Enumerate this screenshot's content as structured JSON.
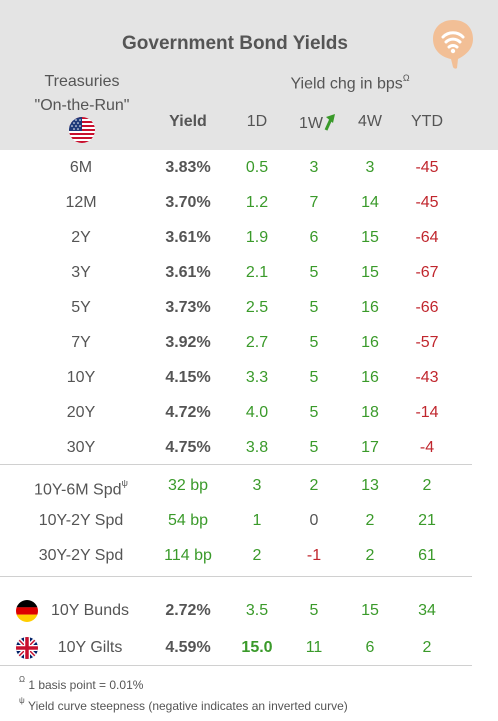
{
  "title": "Government Bond Yields",
  "header": {
    "treasuries_line1": "Treasuries",
    "treasuries_line2": "\"On-the-Run\"",
    "chg_title": "Yield chg in bps",
    "chg_sup": "Ω",
    "col_yield": "Yield",
    "col_1d": "1D",
    "col_1w": "1W",
    "col_4w": "4W",
    "col_ytd": "YTD"
  },
  "treasuries": [
    {
      "label": "6M",
      "yield": "3.83%",
      "d1": "0.5",
      "w1": "3",
      "w4": "3",
      "ytd": "-45"
    },
    {
      "label": "12M",
      "yield": "3.70%",
      "d1": "1.2",
      "w1": "7",
      "w4": "14",
      "ytd": "-45"
    },
    {
      "label": "2Y",
      "yield": "3.61%",
      "d1": "1.9",
      "w1": "6",
      "w4": "15",
      "ytd": "-64"
    },
    {
      "label": "3Y",
      "yield": "3.61%",
      "d1": "2.1",
      "w1": "5",
      "w4": "15",
      "ytd": "-67"
    },
    {
      "label": "5Y",
      "yield": "3.73%",
      "d1": "2.5",
      "w1": "5",
      "w4": "16",
      "ytd": "-66"
    },
    {
      "label": "7Y",
      "yield": "3.92%",
      "d1": "2.7",
      "w1": "5",
      "w4": "16",
      "ytd": "-57"
    },
    {
      "label": "10Y",
      "yield": "4.15%",
      "d1": "3.3",
      "w1": "5",
      "w4": "16",
      "ytd": "-43"
    },
    {
      "label": "20Y",
      "yield": "4.72%",
      "d1": "4.0",
      "w1": "5",
      "w4": "18",
      "ytd": "-14"
    },
    {
      "label": "30Y",
      "yield": "4.75%",
      "d1": "3.8",
      "w1": "5",
      "w4": "17",
      "ytd": "-4"
    }
  ],
  "spreads": [
    {
      "label": "10Y-6M Spd",
      "sup": "ψ",
      "yield": "32 bp",
      "d1": "3",
      "w1": "2",
      "w4": "13",
      "ytd": "2"
    },
    {
      "label": "10Y-2Y Spd",
      "sup": "",
      "yield": "54 bp",
      "d1": "1",
      "w1": "0",
      "w4": "2",
      "ytd": "21"
    },
    {
      "label": "30Y-2Y Spd",
      "sup": "",
      "yield": "114 bp",
      "d1": "2",
      "w1": "-1",
      "w4": "2",
      "ytd": "61"
    }
  ],
  "bonds": [
    {
      "label": "10Y Bunds",
      "yield": "2.72%",
      "d1": "3.5",
      "w1": "5",
      "w4": "15",
      "ytd": "34",
      "flag": "germany-flag-icon"
    },
    {
      "label": "10Y Gilts",
      "yield": "4.59%",
      "d1": "15.0",
      "w1": "11",
      "w4": "6",
      "ytd": "2",
      "flag": "uk-flag-icon"
    }
  ],
  "footnotes": {
    "f1_sup": "Ω",
    "f1_text": "1 basis point = 0.01%",
    "f2_sup": "ψ",
    "f2_text": "Yield curve steepness (negative indicates an inverted curve)"
  },
  "icons": {
    "logo": "signal-bubble-logo-icon",
    "us_flag": "us-flag-icon",
    "arrow": "up-arrow-icon"
  },
  "colors": {
    "positive": "#3a9a2a",
    "negative": "#c0262d",
    "header_bg": "#e4e4e4",
    "logo": "#f0b88a"
  }
}
